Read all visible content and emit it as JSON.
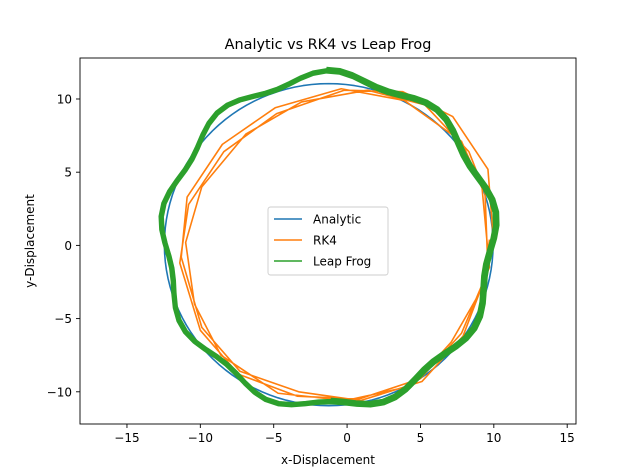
{
  "chart_data": {
    "type": "line",
    "title": "Analytic vs RK4 vs Leap Frog",
    "xlabel": "x-Displacement",
    "ylabel": "y-Displacement",
    "xlim": [
      -18.2,
      15.6
    ],
    "ylim": [
      -12.2,
      12.8
    ],
    "xticks": [
      -15,
      -10,
      -5,
      0,
      5,
      10,
      15
    ],
    "yticks": [
      -10,
      -5,
      0,
      5,
      10
    ],
    "xtick_labels": [
      "−15",
      "−10",
      "−5",
      "0",
      "5",
      "10",
      "15"
    ],
    "ytick_labels": [
      "−10",
      "−5",
      "0",
      "5",
      "10"
    ],
    "grid": false,
    "legend_position": "center",
    "series": [
      {
        "name": "Analytic",
        "color": "#1f77b4",
        "kind": "ellipse",
        "center": [
          -1.25,
          0.05
        ],
        "radii": [
          11.2,
          11.0
        ],
        "samples": 120
      },
      {
        "name": "RK4",
        "color": "#ff7f0e",
        "x": [
          10,
          9.6,
          7.2,
          3.8,
          -0.2,
          -4.8,
          -8.4,
          -10.8,
          -11.4,
          -10.0,
          -7.4,
          -3.4,
          0.8,
          5.0,
          7.8,
          9.7,
          9.2,
          7.8,
          3.9,
          -0.4,
          -4.9,
          -8.5,
          -10.9,
          -11.3,
          -9.9,
          -7.3,
          -3.3,
          0.9,
          5.1,
          7.9,
          9.6,
          9.4,
          8.3,
          5.3,
          1.4,
          -3.1,
          -6.9,
          -9.9,
          -11.0,
          -10.4,
          -8.6,
          -4.7,
          -0.1,
          4.4,
          7.1,
          9.4,
          9.7
        ],
        "y": [
          0,
          5.2,
          8.8,
          10.5,
          10.6,
          9.0,
          6.4,
          2.8,
          -1.2,
          -5.8,
          -8.8,
          -10.3,
          -10.5,
          -9.1,
          -6.0,
          -1.5,
          3.9,
          7.1,
          9.9,
          10.7,
          9.4,
          6.9,
          3.3,
          -0.8,
          -5.6,
          -8.6,
          -10.0,
          -10.6,
          -9.3,
          -6.2,
          -1.7,
          3.6,
          6.4,
          9.6,
          10.6,
          9.8,
          7.6,
          4.0,
          0.2,
          -4.0,
          -7.5,
          -10.1,
          -10.6,
          -9.6,
          -6.6,
          -2.6,
          0.4
        ]
      },
      {
        "name": "Leap Frog",
        "color": "#2ca02c",
        "kind": "spiral",
        "center": [
          -1.25,
          0.3
        ],
        "start": [
          -1.4,
          11.8
        ],
        "loops": 4.5,
        "radius_x_range": [
          11.4,
          11.0
        ],
        "radius_y_range": [
          11.5,
          11.1
        ],
        "wobble": 0.35
      }
    ]
  }
}
